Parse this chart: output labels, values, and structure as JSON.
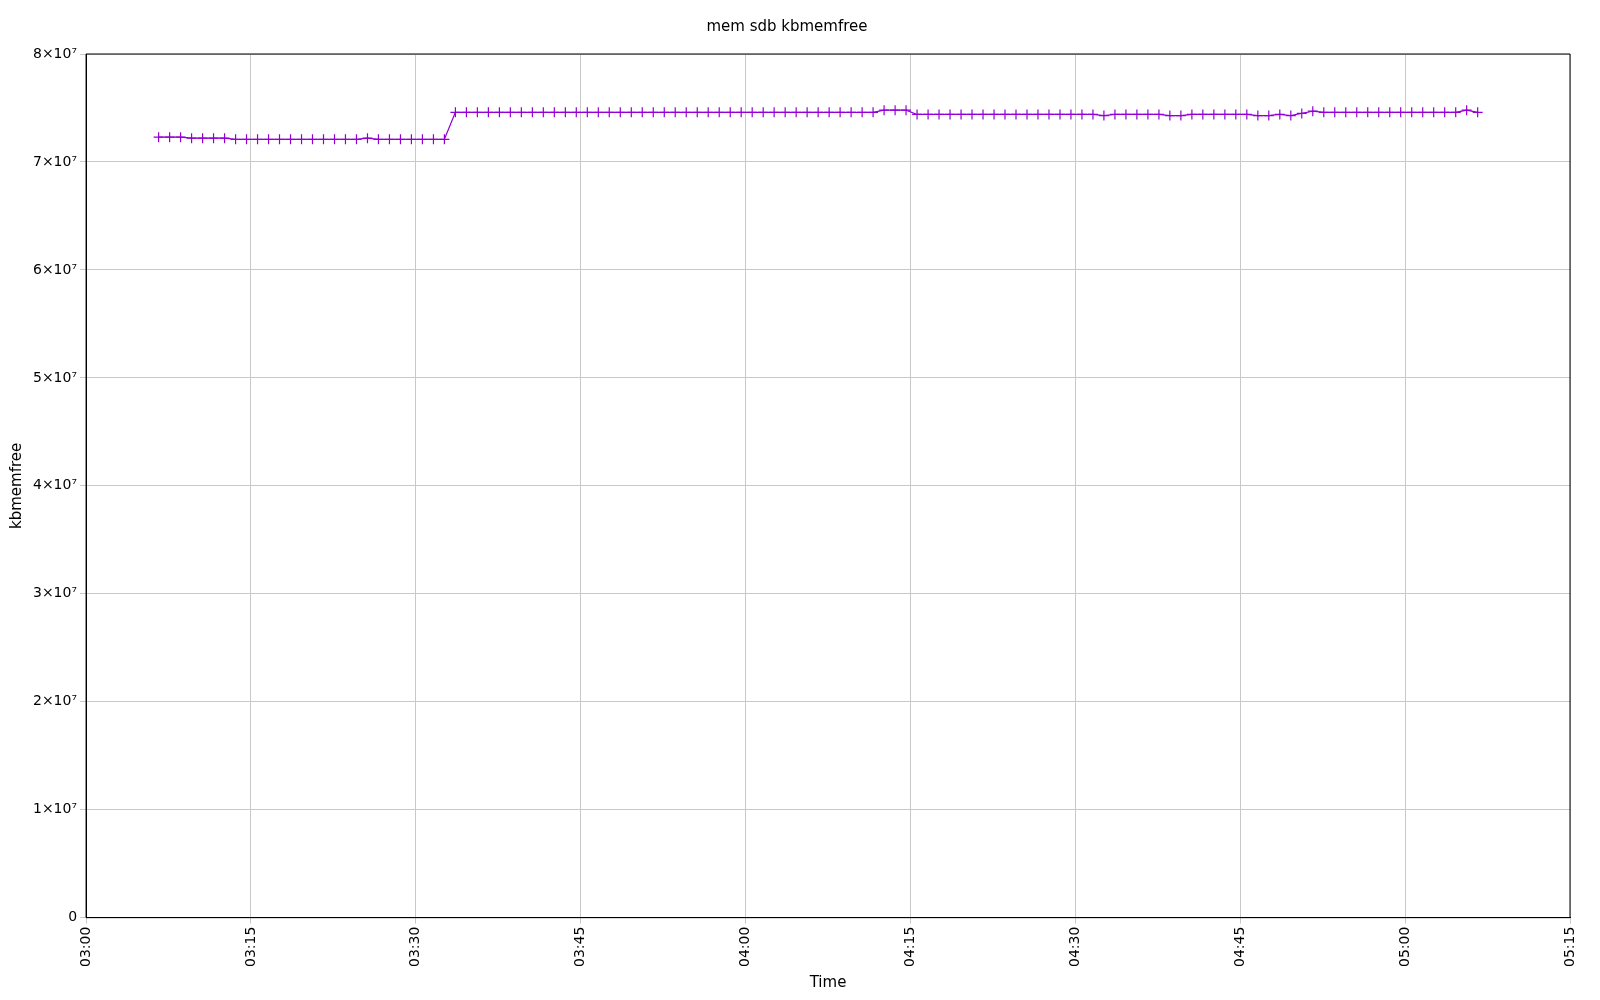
{
  "chart_data": {
    "type": "line",
    "title": "mem sdb kbmemfree",
    "xlabel": "Time",
    "ylabel": "kbmemfree",
    "xlim": [
      3,
      5.25
    ],
    "xticks": [
      {
        "value": 3,
        "label": "03:00"
      },
      {
        "value": 3.25,
        "label": "03:15"
      },
      {
        "value": 3.5,
        "label": "03:30"
      },
      {
        "value": 3.75,
        "label": "03:45"
      },
      {
        "value": 4,
        "label": "04:00"
      },
      {
        "value": 4.25,
        "label": "04:15"
      },
      {
        "value": 4.5,
        "label": "04:30"
      },
      {
        "value": 4.75,
        "label": "04:45"
      },
      {
        "value": 5,
        "label": "05:00"
      },
      {
        "value": 5.25,
        "label": "05:15"
      }
    ],
    "ylim": [
      0,
      80000000
    ],
    "yticks": [
      0,
      {
        "value": 10000000,
        "label": "1×10⁷"
      },
      {
        "value": 20000000,
        "label": "2×10⁷"
      },
      {
        "value": 30000000,
        "label": "3×10⁷"
      },
      {
        "value": 40000000,
        "label": "4×10⁷"
      },
      {
        "value": 50000000,
        "label": "5×10⁷"
      },
      {
        "value": 60000000,
        "label": "6×10⁷"
      },
      {
        "value": 70000000,
        "label": "7×10⁷"
      },
      {
        "value": 80000000,
        "label": "8×10⁷"
      }
    ],
    "grid": true,
    "legend": false,
    "marker": "cross",
    "line_style": "solid",
    "x": [
      3.11,
      3.1267,
      3.1433,
      3.16,
      3.1767,
      3.1933,
      3.21,
      3.2267,
      3.2433,
      3.26,
      3.2767,
      3.2933,
      3.31,
      3.3267,
      3.3433,
      3.36,
      3.3767,
      3.3933,
      3.41,
      3.4267,
      3.4433,
      3.46,
      3.4767,
      3.4933,
      3.51,
      3.5267,
      3.5433,
      3.56,
      3.5767,
      3.5933,
      3.61,
      3.6267,
      3.6433,
      3.66,
      3.6767,
      3.6933,
      3.71,
      3.7267,
      3.7433,
      3.76,
      3.7767,
      3.7933,
      3.81,
      3.8267,
      3.8433,
      3.86,
      3.8767,
      3.8933,
      3.91,
      3.9267,
      3.9433,
      3.96,
      3.9767,
      3.9933,
      4.01,
      4.0267,
      4.0433,
      4.06,
      4.0767,
      4.0933,
      4.11,
      4.1267,
      4.1433,
      4.16,
      4.1767,
      4.1933,
      4.21,
      4.2267,
      4.2433,
      4.26,
      4.2767,
      4.2933,
      4.31,
      4.3267,
      4.3433,
      4.36,
      4.3767,
      4.3933,
      4.41,
      4.4267,
      4.4433,
      4.46,
      4.4767,
      4.4933,
      4.51,
      4.5267,
      4.5433,
      4.56,
      4.5767,
      4.5933,
      4.61,
      4.6267,
      4.6433,
      4.66,
      4.6767,
      4.6933,
      4.71,
      4.7267,
      4.7433,
      4.76,
      4.7767,
      4.7933,
      4.81,
      4.8267,
      4.8433,
      4.86,
      4.8767,
      4.8933,
      4.91,
      4.9267,
      4.9433,
      4.96,
      4.9767,
      4.9933,
      5.01,
      5.0267,
      5.0433,
      5.06,
      5.0767,
      5.0933,
      5.11
    ],
    "series": [
      {
        "color": "#9400d3",
        "values": [
          72300000.0,
          72300000.0,
          72300000.0,
          72200000.0,
          72200000.0,
          72200000.0,
          72200000.0,
          72100000.0,
          72100000.0,
          72100000.0,
          72100000.0,
          72100000.0,
          72100000.0,
          72100000.0,
          72100000.0,
          72100000.0,
          72100000.0,
          72100000.0,
          72100000.0,
          72200000.0,
          72100000.0,
          72100000.0,
          72100000.0,
          72100000.0,
          72100000.0,
          72100000.0,
          72100000.0,
          74600000.0,
          74600000.0,
          74600000.0,
          74600000.0,
          74600000.0,
          74600000.0,
          74600000.0,
          74600000.0,
          74600000.0,
          74600000.0,
          74600000.0,
          74600000.0,
          74600000.0,
          74600000.0,
          74600000.0,
          74600000.0,
          74600000.0,
          74600000.0,
          74600000.0,
          74600000.0,
          74600000.0,
          74600000.0,
          74600000.0,
          74600000.0,
          74600000.0,
          74600000.0,
          74600000.0,
          74600000.0,
          74600000.0,
          74600000.0,
          74600000.0,
          74600000.0,
          74600000.0,
          74600000.0,
          74600000.0,
          74600000.0,
          74600000.0,
          74600000.0,
          74600000.0,
          74800000.0,
          74800000.0,
          74800000.0,
          74400000.0,
          74400000.0,
          74400000.0,
          74400000.0,
          74400000.0,
          74400000.0,
          74400000.0,
          74400000.0,
          74400000.0,
          74400000.0,
          74400000.0,
          74400000.0,
          74400000.0,
          74400000.0,
          74400000.0,
          74400000.0,
          74400000.0,
          74300000.0,
          74400000.0,
          74400000.0,
          74400000.0,
          74400000.0,
          74400000.0,
          74300000.0,
          74300000.0,
          74400000.0,
          74400000.0,
          74400000.0,
          74400000.0,
          74400000.0,
          74400000.0,
          74300000.0,
          74300000.0,
          74400000.0,
          74300000.0,
          74500000.0,
          74700000.0,
          74600000.0,
          74600000.0,
          74600000.0,
          74600000.0,
          74600000.0,
          74600000.0,
          74600000.0,
          74600000.0,
          74600000.0,
          74600000.0,
          74600000.0,
          74600000.0,
          74600000.0,
          74800000.0,
          74600000.0
        ]
      }
    ]
  }
}
